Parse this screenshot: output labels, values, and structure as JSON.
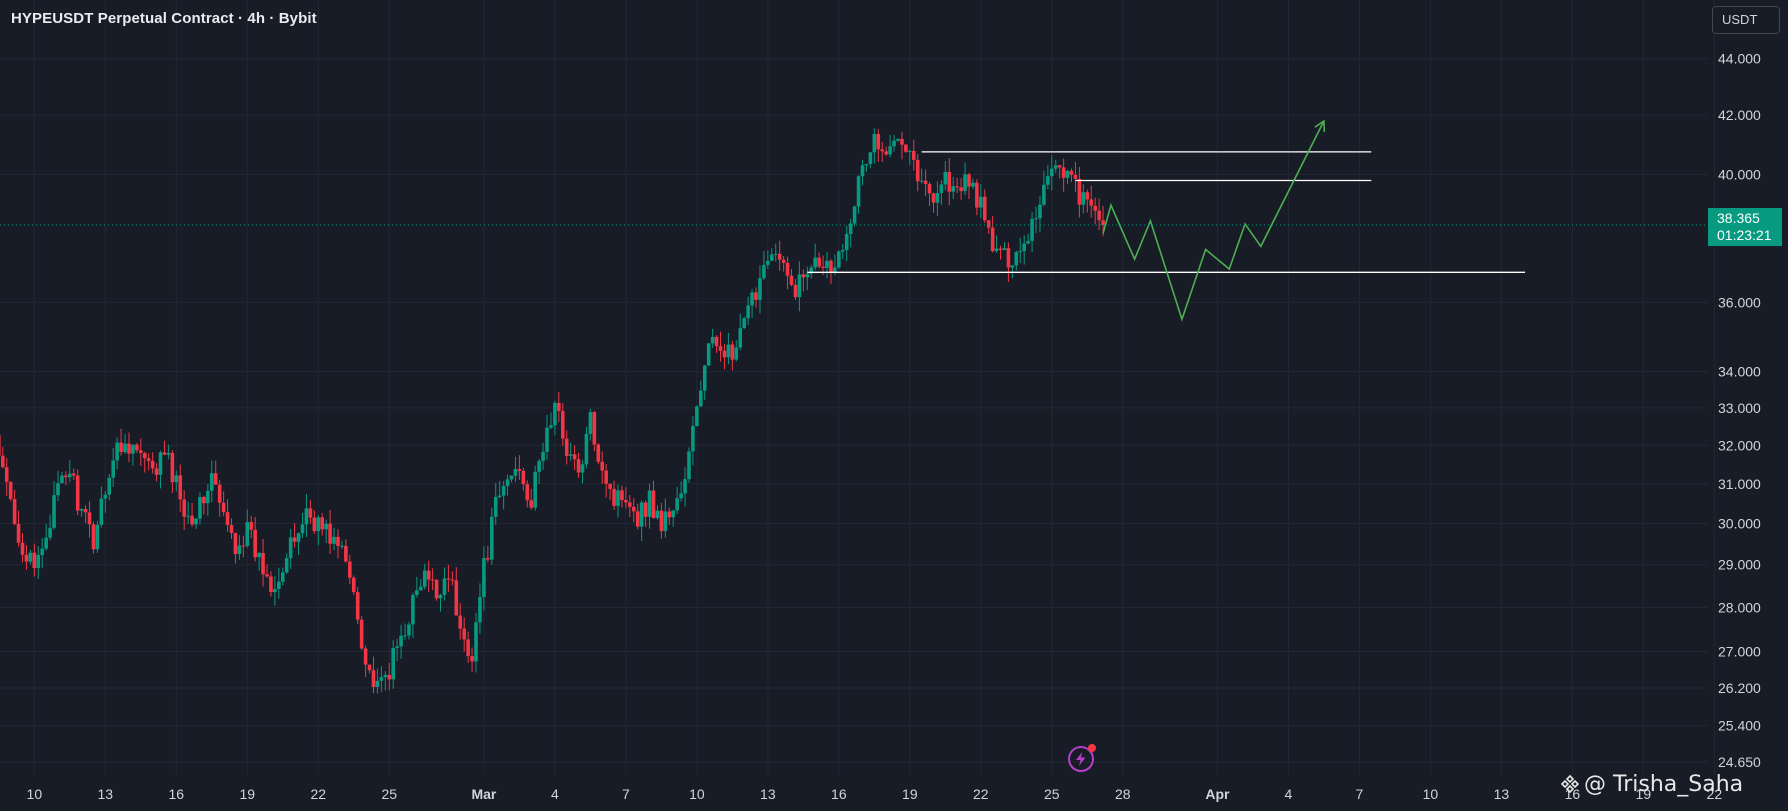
{
  "header": {
    "title": "HYPEUSDT Perpetual Contract · 4h · Bybit",
    "unit_button": "USDT"
  },
  "price_tag": {
    "price": "38.365",
    "countdown": "01:23:21"
  },
  "watermark": {
    "text": "@ Trisha_Saha"
  },
  "colors": {
    "background": "#181c27",
    "grid": "#232734",
    "up": "#089981",
    "down": "#f23645",
    "projection": "#4caf50",
    "levels": "#ffffff",
    "axis_text": "#d1d4dc"
  },
  "chart_data": {
    "type": "candlestick",
    "title": "HYPEUSDT Perpetual Contract · 4h · Bybit",
    "scale": "log",
    "ylim": [
      24.65,
      44.5
    ],
    "xlim": [
      "2025-02-08",
      "2025-04-23"
    ],
    "y_ticks": [
      "44.000",
      "42.000",
      "40.000",
      "36.000",
      "34.000",
      "33.000",
      "32.000",
      "31.000",
      "30.000",
      "29.000",
      "28.000",
      "27.000",
      "26.200",
      "25.400",
      "24.650"
    ],
    "y_tick_values": [
      44,
      42,
      40,
      36,
      34,
      33,
      32,
      31,
      30,
      29,
      28,
      27,
      26.2,
      25.4,
      24.65
    ],
    "x_ticks": [
      {
        "label": "10",
        "date": "2025-02-10"
      },
      {
        "label": "13",
        "date": "2025-02-13"
      },
      {
        "label": "16",
        "date": "2025-02-16"
      },
      {
        "label": "19",
        "date": "2025-02-19"
      },
      {
        "label": "22",
        "date": "2025-02-22"
      },
      {
        "label": "25",
        "date": "2025-02-25"
      },
      {
        "label": "Mar",
        "date": "2025-03-01",
        "bold": true
      },
      {
        "label": "4",
        "date": "2025-03-04"
      },
      {
        "label": "7",
        "date": "2025-03-07"
      },
      {
        "label": "10",
        "date": "2025-03-10"
      },
      {
        "label": "13",
        "date": "2025-03-13"
      },
      {
        "label": "16",
        "date": "2025-03-16"
      },
      {
        "label": "19",
        "date": "2025-03-19"
      },
      {
        "label": "22",
        "date": "2025-03-22"
      },
      {
        "label": "25",
        "date": "2025-03-25"
      },
      {
        "label": "28",
        "date": "2025-03-28"
      },
      {
        "label": "Apr",
        "date": "2025-04-01",
        "bold": true
      },
      {
        "label": "4",
        "date": "2025-04-04"
      },
      {
        "label": "7",
        "date": "2025-04-07"
      },
      {
        "label": "10",
        "date": "2025-04-10"
      },
      {
        "label": "13",
        "date": "2025-04-13"
      },
      {
        "label": "16",
        "date": "2025-04-16"
      },
      {
        "label": "19",
        "date": "2025-04-19"
      },
      {
        "label": "22",
        "date": "2025-04-22"
      }
    ],
    "current_price": 38.365,
    "price_path": [
      [
        "2025-02-08T00:00",
        32.8
      ],
      [
        "2025-02-08T12:00",
        31.6
      ],
      [
        "2025-02-09T00:00",
        30.6
      ],
      [
        "2025-02-09T12:00",
        29.4
      ],
      [
        "2025-02-10T00:00",
        28.8
      ],
      [
        "2025-02-10T12:00",
        29.8
      ],
      [
        "2025-02-11T00:00",
        30.8
      ],
      [
        "2025-02-11T12:00",
        31.4
      ],
      [
        "2025-02-12T00:00",
        30.2
      ],
      [
        "2025-02-12T12:00",
        29.6
      ],
      [
        "2025-02-13T00:00",
        31.0
      ],
      [
        "2025-02-13T12:00",
        31.9
      ],
      [
        "2025-02-14T00:00",
        32.1
      ],
      [
        "2025-02-14T12:00",
        31.7
      ],
      [
        "2025-02-15T00:00",
        31.2
      ],
      [
        "2025-02-15T12:00",
        31.8
      ],
      [
        "2025-02-16T00:00",
        31.0
      ],
      [
        "2025-02-16T12:00",
        30.2
      ],
      [
        "2025-02-17T00:00",
        30.4
      ],
      [
        "2025-02-17T12:00",
        31.2
      ],
      [
        "2025-02-18T00:00",
        30.1
      ],
      [
        "2025-02-18T12:00",
        29.5
      ],
      [
        "2025-02-19T00:00",
        29.8
      ],
      [
        "2025-02-19T12:00",
        29.1
      ],
      [
        "2025-02-20T00:00",
        28.6
      ],
      [
        "2025-02-20T12:00",
        28.9
      ],
      [
        "2025-02-21T00:00",
        29.6
      ],
      [
        "2025-02-21T12:00",
        30.3
      ],
      [
        "2025-02-22T00:00",
        30.0
      ],
      [
        "2025-02-22T12:00",
        29.7
      ],
      [
        "2025-02-23T00:00",
        29.3
      ],
      [
        "2025-02-23T12:00",
        28.4
      ],
      [
        "2025-02-24T00:00",
        26.8
      ],
      [
        "2025-02-24T12:00",
        26.1
      ],
      [
        "2025-02-25T00:00",
        26.6
      ],
      [
        "2025-02-25T12:00",
        27.3
      ],
      [
        "2025-02-26T00:00",
        28.1
      ],
      [
        "2025-02-26T12:00",
        28.7
      ],
      [
        "2025-02-27T00:00",
        28.3
      ],
      [
        "2025-02-27T12:00",
        28.9
      ],
      [
        "2025-02-28T00:00",
        27.4
      ],
      [
        "2025-02-28T12:00",
        27.0
      ],
      [
        "2025-03-01T00:00",
        28.9
      ],
      [
        "2025-03-01T12:00",
        30.4
      ],
      [
        "2025-03-02T00:00",
        31.1
      ],
      [
        "2025-03-02T12:00",
        31.5
      ],
      [
        "2025-03-03T00:00",
        30.5
      ],
      [
        "2025-03-03T12:00",
        32.0
      ],
      [
        "2025-03-04T00:00",
        33.0
      ],
      [
        "2025-03-04T12:00",
        32.0
      ],
      [
        "2025-03-05T00:00",
        31.2
      ],
      [
        "2025-03-05T12:00",
        32.6
      ],
      [
        "2025-03-06T00:00",
        31.5
      ],
      [
        "2025-03-06T12:00",
        30.6
      ],
      [
        "2025-03-07T00:00",
        30.8
      ],
      [
        "2025-03-07T12:00",
        30.2
      ],
      [
        "2025-03-08T00:00",
        30.6
      ],
      [
        "2025-03-08T12:00",
        30.0
      ],
      [
        "2025-03-09T00:00",
        30.4
      ],
      [
        "2025-03-09T12:00",
        31.0
      ],
      [
        "2025-03-10T00:00",
        33.1
      ],
      [
        "2025-03-10T12:00",
        34.6
      ],
      [
        "2025-03-11T00:00",
        34.9
      ],
      [
        "2025-03-11T12:00",
        34.3
      ],
      [
        "2025-03-12T00:00",
        35.3
      ],
      [
        "2025-03-12T12:00",
        36.4
      ],
      [
        "2025-03-13T00:00",
        37.6
      ],
      [
        "2025-03-13T12:00",
        37.2
      ],
      [
        "2025-03-14T00:00",
        36.4
      ],
      [
        "2025-03-14T12:00",
        36.7
      ],
      [
        "2025-03-15T00:00",
        37.6
      ],
      [
        "2025-03-15T12:00",
        37.1
      ],
      [
        "2025-03-16T00:00",
        37.4
      ],
      [
        "2025-03-16T12:00",
        38.8
      ],
      [
        "2025-03-17T00:00",
        40.1
      ],
      [
        "2025-03-17T12:00",
        41.2
      ],
      [
        "2025-03-18T00:00",
        40.4
      ],
      [
        "2025-03-18T12:00",
        41.6
      ],
      [
        "2025-03-19T00:00",
        40.9
      ],
      [
        "2025-03-19T12:00",
        39.6
      ],
      [
        "2025-03-20T00:00",
        39.4
      ],
      [
        "2025-03-20T12:00",
        39.9
      ],
      [
        "2025-03-21T00:00",
        39.3
      ],
      [
        "2025-03-21T12:00",
        39.9
      ],
      [
        "2025-03-22T00:00",
        38.9
      ],
      [
        "2025-03-22T12:00",
        37.7
      ],
      [
        "2025-03-23T00:00",
        37.3
      ],
      [
        "2025-03-23T12:00",
        37.5
      ],
      [
        "2025-03-24T00:00",
        38.1
      ],
      [
        "2025-03-24T12:00",
        39.2
      ],
      [
        "2025-03-25T00:00",
        40.4
      ],
      [
        "2025-03-25T12:00",
        40.2
      ],
      [
        "2025-03-26T00:00",
        39.6
      ],
      [
        "2025-03-26T12:00",
        38.9
      ],
      [
        "2025-03-27T00:00",
        38.6
      ],
      [
        "2025-03-27T04:00",
        38.365
      ]
    ],
    "horizontal_levels": [
      {
        "price": 40.75,
        "from": "2025-03-19T12:00",
        "to": "2025-04-07T12:00"
      },
      {
        "price": 39.8,
        "from": "2025-03-26T00:00",
        "to": "2025-04-07T12:00"
      },
      {
        "price": 36.9,
        "from": "2025-03-14T16:00",
        "to": "2025-04-14T00:00"
      }
    ],
    "projection_path": [
      [
        "2025-03-27T04:00",
        38.1
      ],
      [
        "2025-03-27T12:00",
        39.0
      ],
      [
        "2025-03-28T12:00",
        37.3
      ],
      [
        "2025-03-29T04:00",
        38.5
      ],
      [
        "2025-03-30T12:00",
        35.5
      ],
      [
        "2025-03-31T12:00",
        37.6
      ],
      [
        "2025-04-01T12:00",
        37.0
      ],
      [
        "2025-04-02T04:00",
        38.4
      ],
      [
        "2025-04-02T20:00",
        37.7
      ],
      [
        "2025-04-05T12:00",
        41.8
      ]
    ]
  }
}
